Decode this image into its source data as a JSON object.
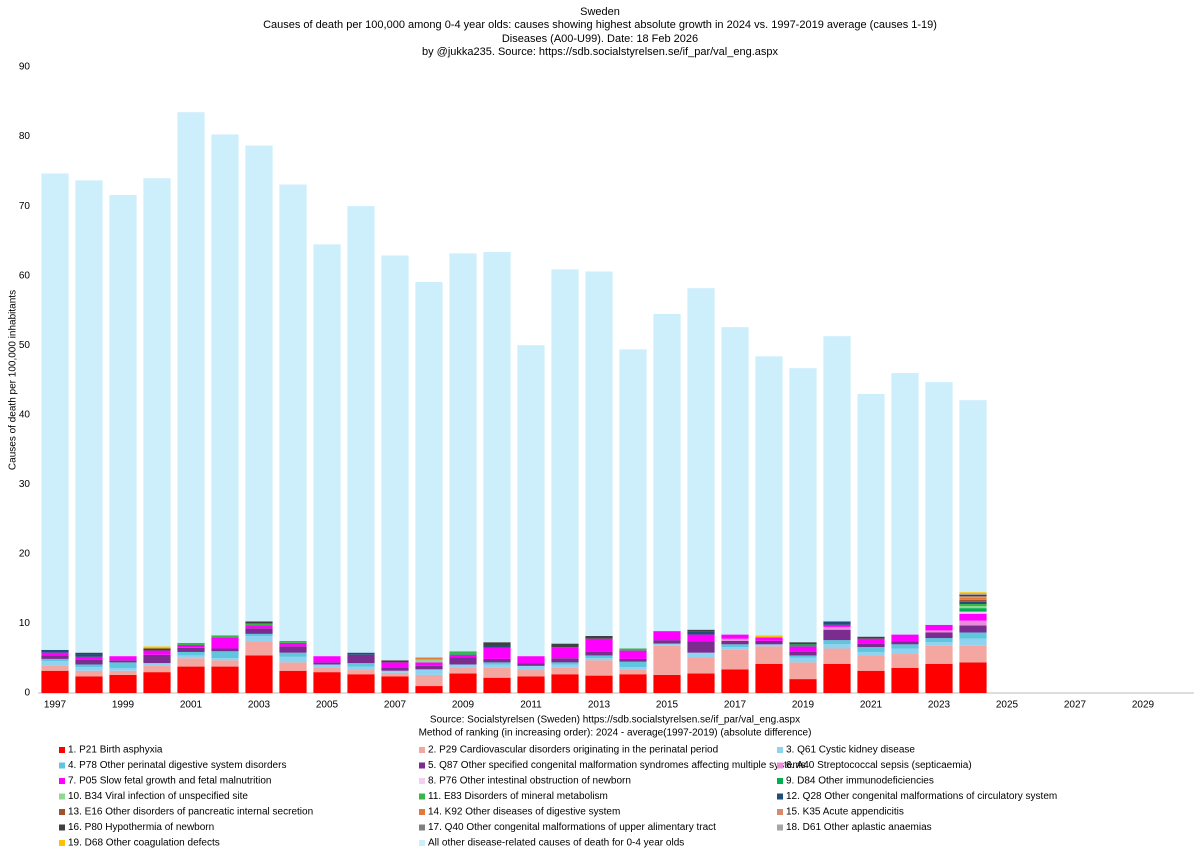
{
  "chart_data": {
    "type": "stacked_bar",
    "title": "Sweden",
    "subtitle": [
      "Causes of death per 100,000 among  0-4 year olds: causes showing highest absolute  growth in 2024 vs. 1997-2019 average   (causes 1-19)",
      "Diseases (A00-U99).   Date: 18 Feb 2026",
      "by @jukka235. Source: https://sdb.socialstyrelsen.se/if_par/val_eng.aspx"
    ],
    "ylabel": "Causes of death per 100,000 inhabitants",
    "notes": [
      "Source: Socialstyrelsen (Sweden)  https://sdb.socialstyrelsen.se/if_par/val_eng.aspx",
      "Method of ranking (in increasing order): 2024 - average(1997-2019)  (absolute difference)"
    ],
    "categories": [
      "1997",
      null,
      "1999",
      null,
      "2001",
      null,
      "2003",
      null,
      "2005",
      null,
      "2007",
      null,
      "2009",
      null,
      "2011",
      null,
      "2013",
      null,
      "2015",
      null,
      "2017",
      null,
      "2019",
      null,
      "2021",
      null,
      "2023",
      null,
      "2025",
      null,
      "2027",
      null,
      "2029",
      null
    ],
    "ylim": [
      0,
      90
    ],
    "yticks": [
      0,
      10,
      20,
      30,
      40,
      50,
      60,
      70,
      80,
      90
    ],
    "grid": false,
    "series": [
      {
        "name": "1. P21 Birth asphyxia",
        "color": "#ff0000",
        "values": [
          3.2,
          2.4,
          2.6,
          3.0,
          3.8,
          3.8,
          5.4,
          3.2,
          3.0,
          2.7,
          2.4,
          1.0,
          2.8,
          2.2,
          2.4,
          2.7,
          2.5,
          2.7,
          2.6,
          2.8,
          3.4,
          4.2,
          2.0,
          4.2,
          3.2,
          3.6,
          4.2,
          4.4,
          null,
          null,
          null,
          null,
          null,
          null
        ]
      },
      {
        "name": "2. P29 Cardiovascular disorders originating in the perinatal period",
        "color": "#f4a6a0",
        "values": [
          0.8,
          0.8,
          0.6,
          1.0,
          1.2,
          0.9,
          2.0,
          1.2,
          0.6,
          0.6,
          0.5,
          1.6,
          0.8,
          1.5,
          0.9,
          1.0,
          2.2,
          0.7,
          4.2,
          2.3,
          2.8,
          2.5,
          2.4,
          2.2,
          2.2,
          2.0,
          2.6,
          2.4,
          null,
          null,
          null,
          null,
          null,
          null
        ]
      },
      {
        "name": "3. Q61 Cystic kidney disease",
        "color": "#8fd3f0",
        "values": [
          0.6,
          0.5,
          0.4,
          0.3,
          0.4,
          0.3,
          0.8,
          0.8,
          0.5,
          0.5,
          0.3,
          0.8,
          0.5,
          0.4,
          0.6,
          0.4,
          0.3,
          0.3,
          0.3,
          0.7,
          0.4,
          0.3,
          0.7,
          0.6,
          0.5,
          0.8,
          0.5,
          1.0,
          null,
          null,
          null,
          null,
          null,
          null
        ]
      },
      {
        "name": "4. P78 Other perinatal digestive system disorders",
        "color": "#5fc6de",
        "values": [
          0.3,
          0.4,
          0.8,
          0,
          0.5,
          1.0,
          0.3,
          0.6,
          0,
          0.5,
          0,
          0,
          0,
          0.3,
          0,
          0.3,
          0.4,
          0.8,
          0,
          0,
          0.4,
          0,
          0.3,
          0.6,
          0.7,
          0.6,
          0.6,
          0.9,
          null,
          null,
          null,
          null,
          null,
          null
        ]
      },
      {
        "name": "5. Q87 Other specified congenital malformation syndromes affecting multiple systems",
        "color": "#7b2c8f",
        "values": [
          0.5,
          0.7,
          0.3,
          1.2,
          0.6,
          0.4,
          0.8,
          0.9,
          0.3,
          1.2,
          0.5,
          0.5,
          1.0,
          0.5,
          0.4,
          0.6,
          0.5,
          0.4,
          0.5,
          1.6,
          0.5,
          0.5,
          0.5,
          1.5,
          0.5,
          0.4,
          0.8,
          1.0,
          null,
          null,
          null,
          null,
          null,
          null
        ]
      },
      {
        "name": "6. A40 Streptococcal sepsis (septicaemia)",
        "color": "#e58fd8",
        "values": [
          0,
          0,
          0,
          0,
          0,
          0,
          0,
          0,
          0,
          0,
          0,
          0,
          0,
          0,
          0,
          0,
          0,
          0,
          0,
          0,
          0.3,
          0,
          0,
          0.4,
          0,
          0,
          0.3,
          0.7,
          null,
          null,
          null,
          null,
          null,
          null
        ]
      },
      {
        "name": "7. P05 Slow fetal growth and fetal malnutrition",
        "color": "#ff00ff",
        "values": [
          0.4,
          0.4,
          0.6,
          0.6,
          0.4,
          1.6,
          0.4,
          0.5,
          0.9,
          0,
          0.7,
          0.5,
          0.4,
          1.6,
          1.0,
          1.6,
          1.9,
          1.2,
          1.3,
          1.0,
          0.6,
          0.5,
          0.8,
          0.3,
          0.7,
          1.0,
          0.8,
          1.0,
          null,
          null,
          null,
          null,
          null,
          null
        ]
      },
      {
        "name": "8. P76 Other intestinal obstruction of newborn",
        "color": "#f2d0f0",
        "values": [
          0,
          0,
          0,
          0,
          0,
          0,
          0,
          0,
          0,
          0,
          0,
          0,
          0,
          0,
          0,
          0,
          0,
          0,
          0,
          0,
          0,
          0,
          0,
          0,
          0,
          0,
          0,
          0.3,
          null,
          null,
          null,
          null,
          null,
          null
        ]
      },
      {
        "name": "9. D84 Other immunodeficiencies",
        "color": "#00b050",
        "values": [
          0,
          0,
          0,
          0,
          0,
          0,
          0,
          0,
          0,
          0,
          0,
          0,
          0.2,
          0,
          0,
          0,
          0,
          0,
          0,
          0,
          0,
          0,
          0.3,
          0,
          0,
          0,
          0,
          0.5,
          null,
          null,
          null,
          null,
          null,
          null
        ]
      },
      {
        "name": "10. B34 Viral infection of unspecified site",
        "color": "#8fd88f",
        "values": [
          0,
          0,
          0,
          0,
          0,
          0,
          0,
          0,
          0,
          0,
          0,
          0.4,
          0,
          0,
          0,
          0,
          0,
          0,
          0,
          0,
          0,
          0,
          0,
          0,
          0,
          0,
          0,
          0.3,
          null,
          null,
          null,
          null,
          null,
          null
        ]
      },
      {
        "name": "11. E83 Disorders of mineral metabolism",
        "color": "#39b54a",
        "values": [
          0,
          0,
          0,
          0,
          0.3,
          0.3,
          0.3,
          0.3,
          0,
          0,
          0,
          0,
          0.3,
          0,
          0,
          0,
          0,
          0.3,
          0,
          0,
          0,
          0,
          0,
          0,
          0,
          0,
          0,
          0.3,
          null,
          null,
          null,
          null,
          null,
          null
        ]
      },
      {
        "name": "12. Q28 Other congenital malformations of circulatory system",
        "color": "#1f4e79",
        "values": [
          0.4,
          0.4,
          0,
          0,
          0,
          0,
          0,
          0,
          0,
          0.3,
          0,
          0,
          0,
          0.4,
          0,
          0,
          0,
          0,
          0,
          0.4,
          0,
          0,
          0,
          0.5,
          0,
          0,
          0,
          0.3,
          null,
          null,
          null,
          null,
          null,
          null
        ]
      },
      {
        "name": "13. E16 Other disorders of pancreatic internal secretion",
        "color": "#a0522d",
        "values": [
          0,
          0,
          0,
          0,
          0,
          0,
          0,
          0,
          0,
          0,
          0,
          0,
          0,
          0,
          0,
          0,
          0,
          0,
          0,
          0,
          0,
          0,
          0,
          0,
          0,
          0,
          0,
          0.3,
          null,
          null,
          null,
          null,
          null,
          null
        ]
      },
      {
        "name": "14. K92 Other diseases of digestive system",
        "color": "#e07b39",
        "values": [
          0,
          0,
          0,
          0,
          0,
          0,
          0,
          0,
          0,
          0,
          0,
          0.3,
          0,
          0,
          0,
          0,
          0,
          0,
          0,
          0,
          0,
          0,
          0,
          0,
          0,
          0,
          0,
          0.3,
          null,
          null,
          null,
          null,
          null,
          null
        ]
      },
      {
        "name": "15. K35 Acute appendicitis",
        "color": "#d98a6a",
        "values": [
          0,
          0,
          0,
          0,
          0,
          0,
          0,
          0,
          0,
          0,
          0,
          0,
          0,
          0,
          0,
          0,
          0,
          0,
          0,
          0,
          0,
          0,
          0,
          0,
          0,
          0,
          0,
          0.2,
          null,
          null,
          null,
          null,
          null,
          null
        ]
      },
      {
        "name": "16. P80 Hypothermia of newborn",
        "color": "#404040",
        "values": [
          0,
          0.2,
          0,
          0.3,
          0,
          0,
          0.3,
          0,
          0,
          0,
          0.3,
          0,
          0,
          0.4,
          0,
          0.5,
          0.4,
          0,
          0,
          0.3,
          0,
          0,
          0.3,
          0,
          0.3,
          0,
          0,
          0.2,
          null,
          null,
          null,
          null,
          null,
          null
        ]
      },
      {
        "name": "17. Q40 Other congenital malformations of upper alimentary tract",
        "color": "#808080",
        "values": [
          0,
          0,
          0,
          0,
          0,
          0,
          0,
          0,
          0,
          0,
          0,
          0,
          0,
          0,
          0,
          0,
          0,
          0,
          0,
          0,
          0,
          0,
          0,
          0,
          0,
          0,
          0,
          0.1,
          null,
          null,
          null,
          null,
          null,
          null
        ]
      },
      {
        "name": "18. D61 Other aplastic anaemias",
        "color": "#a6a6a6",
        "values": [
          0,
          0,
          0,
          0,
          0,
          0,
          0,
          0,
          0,
          0,
          0,
          0,
          0,
          0,
          0,
          0,
          0,
          0,
          0,
          0,
          0,
          0,
          0,
          0,
          0,
          0,
          0,
          0.1,
          null,
          null,
          null,
          null,
          null,
          null
        ]
      },
      {
        "name": "19. D68 Other coagulation defects",
        "color": "#ffc000",
        "values": [
          0,
          0,
          0,
          0.3,
          0,
          0,
          0,
          0,
          0,
          0,
          0,
          0,
          0,
          0,
          0,
          0,
          0,
          0,
          0,
          0,
          0,
          0.3,
          0,
          0,
          0,
          0,
          0,
          0.2,
          null,
          null,
          null,
          null,
          null,
          null
        ]
      },
      {
        "name": "All other disease-related causes of death for  0-4 year olds",
        "color": "#cdeefb",
        "values": [
          68.5,
          67.9,
          66.3,
          67.3,
          76.3,
          72.0,
          68.4,
          65.6,
          59.2,
          64.2,
          58.2,
          54.0,
          57.2,
          56.1,
          44.7,
          53.8,
          52.4,
          43.0,
          45.6,
          49.1,
          44.2,
          40.1,
          39.4,
          41.0,
          34.9,
          37.6,
          34.9,
          27.6,
          null,
          null,
          null,
          null,
          null,
          null
        ]
      }
    ]
  }
}
